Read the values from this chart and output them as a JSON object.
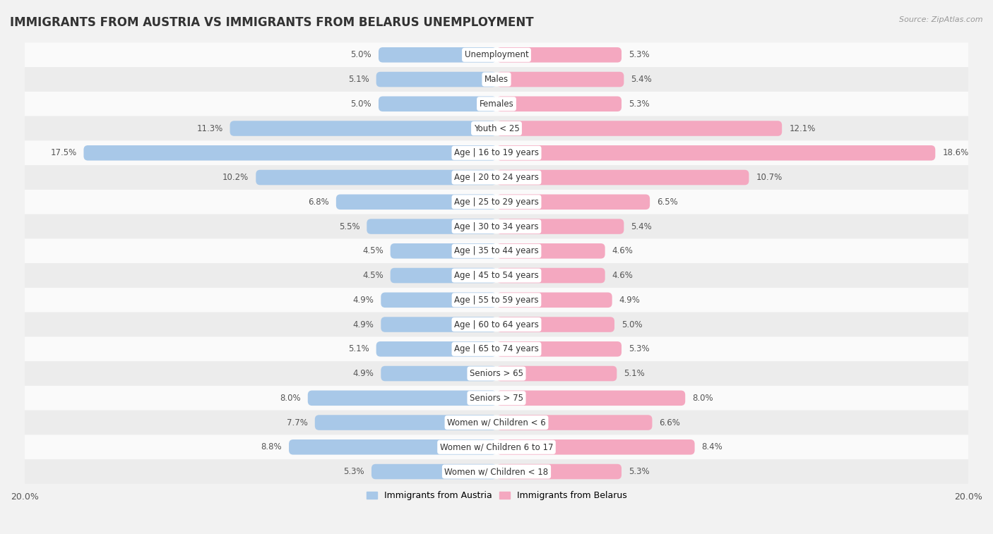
{
  "title": "IMMIGRANTS FROM AUSTRIA VS IMMIGRANTS FROM BELARUS UNEMPLOYMENT",
  "source": "Source: ZipAtlas.com",
  "categories": [
    "Unemployment",
    "Males",
    "Females",
    "Youth < 25",
    "Age | 16 to 19 years",
    "Age | 20 to 24 years",
    "Age | 25 to 29 years",
    "Age | 30 to 34 years",
    "Age | 35 to 44 years",
    "Age | 45 to 54 years",
    "Age | 55 to 59 years",
    "Age | 60 to 64 years",
    "Age | 65 to 74 years",
    "Seniors > 65",
    "Seniors > 75",
    "Women w/ Children < 6",
    "Women w/ Children 6 to 17",
    "Women w/ Children < 18"
  ],
  "austria_values": [
    5.0,
    5.1,
    5.0,
    11.3,
    17.5,
    10.2,
    6.8,
    5.5,
    4.5,
    4.5,
    4.9,
    4.9,
    5.1,
    4.9,
    8.0,
    7.7,
    8.8,
    5.3
  ],
  "belarus_values": [
    5.3,
    5.4,
    5.3,
    12.1,
    18.6,
    10.7,
    6.5,
    5.4,
    4.6,
    4.6,
    4.9,
    5.0,
    5.3,
    5.1,
    8.0,
    6.6,
    8.4,
    5.3
  ],
  "austria_color": "#a8c8e8",
  "belarus_color": "#f4a8c0",
  "austria_label": "Immigrants from Austria",
  "belarus_label": "Immigrants from Belarus",
  "axis_max": 20.0,
  "bar_height": 0.62,
  "bg_color": "#f2f2f2",
  "row_colors": [
    "#fafafa",
    "#ececec"
  ],
  "title_fontsize": 12,
  "label_fontsize": 8.5,
  "value_fontsize": 8.5
}
